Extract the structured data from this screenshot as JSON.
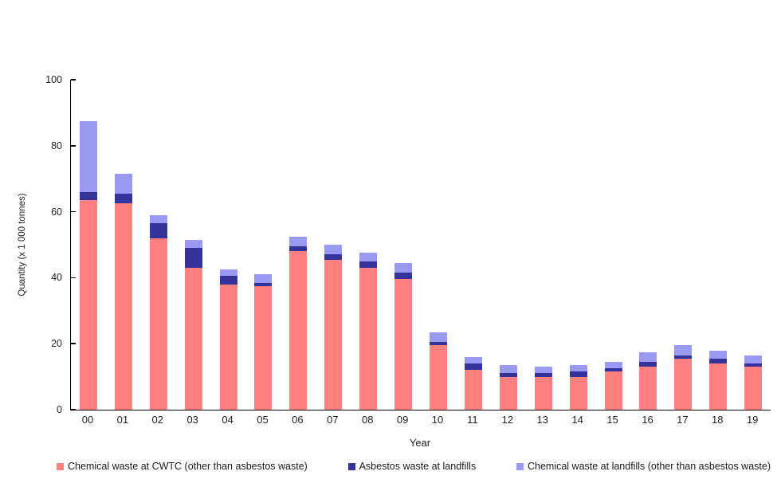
{
  "chart_data": {
    "type": "bar",
    "stacked": true,
    "title": "",
    "xlabel": "Year",
    "ylabel": "Quantity (x 1 000 tonnes)",
    "ylim": [
      0,
      100
    ],
    "yticks": [
      0,
      20,
      40,
      60,
      80,
      100
    ],
    "grid": false,
    "legend_position": "bottom",
    "categories": [
      "00",
      "01",
      "02",
      "03",
      "04",
      "05",
      "06",
      "07",
      "08",
      "09",
      "10",
      "11",
      "12",
      "13",
      "14",
      "15",
      "16",
      "17",
      "18",
      "19"
    ],
    "series": [
      {
        "key": "cwtc",
        "name": "Chemical waste at CWTC (other than asbestos waste)",
        "color": "#FF8080",
        "values": [
          63.5,
          62.5,
          52,
          43,
          38,
          37.5,
          48,
          45.5,
          43,
          39.5,
          19.5,
          12,
          10,
          10,
          10,
          11.5,
          13,
          15.5,
          14,
          13
        ]
      },
      {
        "key": "asbestos-landfill",
        "name": "Asbestos waste at landfills",
        "color": "#333399",
        "values": [
          2.5,
          3,
          4.5,
          6,
          2.5,
          1,
          1.5,
          1.5,
          2,
          2,
          1,
          2,
          1,
          1,
          1.5,
          1,
          1.5,
          1,
          1.5,
          1
        ]
      },
      {
        "key": "chemical-landfill",
        "name": "Chemical waste at landfills (other than asbestos waste)",
        "color": "#9999F2",
        "values": [
          21.5,
          6,
          2.5,
          2.5,
          2,
          2.5,
          3,
          3,
          2.5,
          3,
          3,
          2,
          2.5,
          2,
          2,
          2,
          3,
          3,
          2.5,
          2.5
        ]
      }
    ],
    "axis_color": "#000000",
    "text_color": "#222222"
  }
}
